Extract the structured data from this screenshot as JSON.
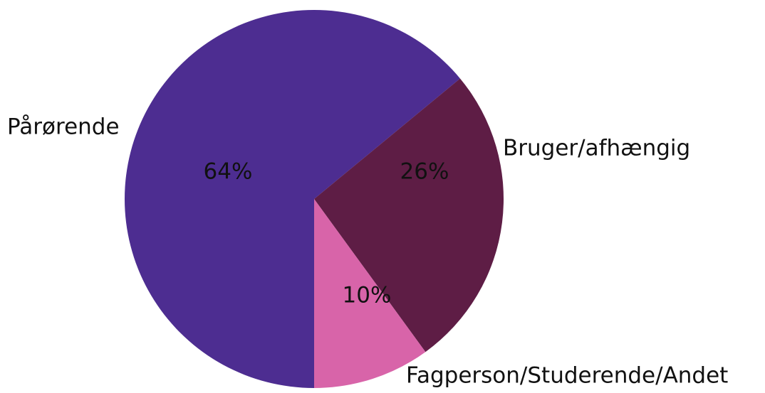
{
  "chart_data": {
    "type": "pie",
    "categories": [
      "Pårørende",
      "Bruger/afhængig",
      "Fagperson/Studerende/Andet"
    ],
    "values": [
      64,
      26,
      10
    ],
    "value_labels": [
      "64%",
      "26%",
      "10%"
    ],
    "colors": [
      "#4d2d91",
      "#5e1d45",
      "#d864a9"
    ]
  }
}
